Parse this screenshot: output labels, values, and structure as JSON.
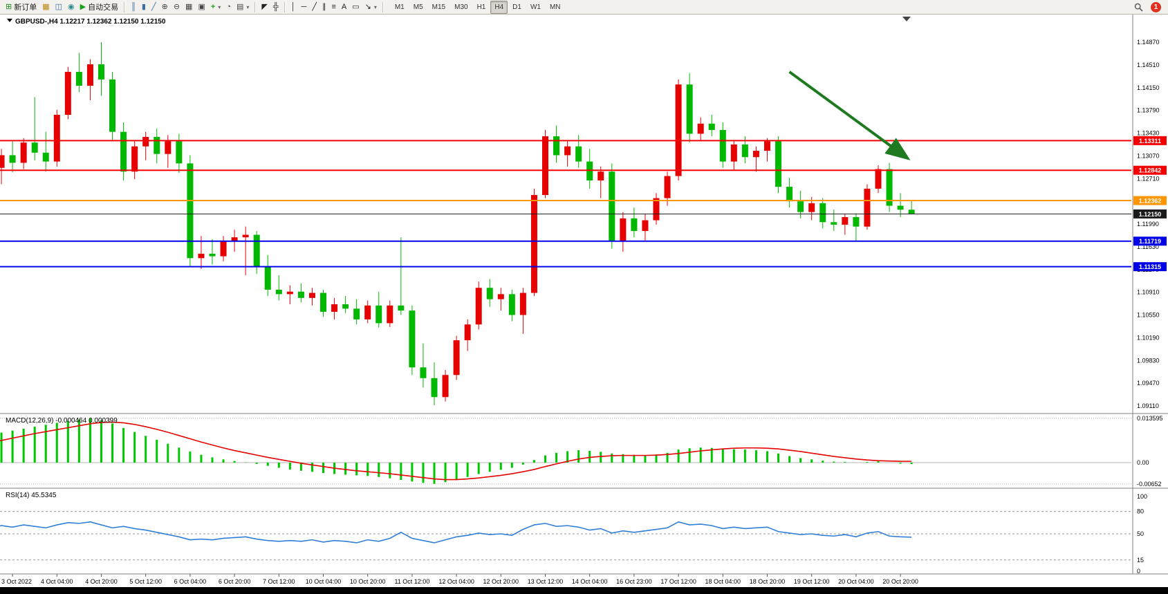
{
  "toolbar": {
    "left_groups": [
      {
        "buttons": [
          {
            "id": "new-order",
            "glyph": "⊞",
            "color": "#1a8a1a",
            "label": "新订单"
          },
          {
            "id": "market-watch",
            "glyph": "▦",
            "color": "#b8860b"
          },
          {
            "id": "data-window",
            "glyph": "◫",
            "color": "#3a6ea5"
          },
          {
            "id": "navigator",
            "glyph": "◉",
            "color": "#2e8b8b"
          },
          {
            "id": "autotrading",
            "glyph": "▶",
            "color": "#18a018",
            "label": "自动交易"
          }
        ]
      },
      {
        "buttons": [
          {
            "id": "bar-chart",
            "glyph": "║",
            "color": "#3a6ea5"
          },
          {
            "id": "candlestick-chart",
            "glyph": "▮",
            "color": "#3a6ea5"
          },
          {
            "id": "line-chart",
            "glyph": "╱",
            "color": "#3a6ea5"
          },
          {
            "id": "zoom-in",
            "glyph": "⊕",
            "color": "#444444"
          },
          {
            "id": "zoom-out",
            "glyph": "⊖",
            "color": "#444444"
          },
          {
            "id": "tile-windows",
            "glyph": "▦",
            "color": "#444444"
          },
          {
            "id": "arrange-windows",
            "glyph": "▣",
            "color": "#444444"
          },
          {
            "id": "new-chart",
            "glyph": "+",
            "color": "#18a018",
            "caret": true
          },
          {
            "id": "chart-period",
            "glyph": "◔",
            "color": "#444444"
          },
          {
            "id": "chart-template",
            "glyph": "▤",
            "color": "#444444",
            "caret": true
          }
        ]
      },
      {
        "buttons": [
          {
            "id": "cursor",
            "glyph": "◤",
            "color": "#222222"
          },
          {
            "id": "crosshair",
            "glyph": "╬",
            "color": "#222222"
          }
        ]
      },
      {
        "buttons": [
          {
            "id": "vertical-line",
            "glyph": "│",
            "color": "#222222"
          },
          {
            "id": "horizontal-line",
            "glyph": "─",
            "color": "#222222"
          },
          {
            "id": "trendline",
            "glyph": "╱",
            "color": "#222222"
          },
          {
            "id": "equidistant-channel",
            "glyph": "∥",
            "color": "#222222"
          },
          {
            "id": "fibonacci",
            "glyph": "≡",
            "color": "#222222"
          },
          {
            "id": "text",
            "glyph": "A",
            "color": "#222222"
          },
          {
            "id": "text-label",
            "glyph": "▭",
            "color": "#222222"
          },
          {
            "id": "arrows",
            "glyph": "↘",
            "color": "#222222",
            "caret": true
          }
        ]
      }
    ],
    "timeframes": {
      "items": [
        "M1",
        "M5",
        "M15",
        "M30",
        "H1",
        "H4",
        "D1",
        "W1",
        "MN"
      ],
      "active": "H4"
    },
    "notification_count": "1"
  },
  "chart_data": [
    {
      "type": "candlestick",
      "title": "GBPUSD-,H4",
      "ohlc_display": "1.12217 1.12362 1.12150 1.12150",
      "timeframe": "H4",
      "bull_color": "#e60000",
      "bear_color": "#00b800",
      "y_axis": [
        1.1487,
        1.1451,
        1.1415,
        1.1379,
        1.1343,
        1.1307,
        1.1271,
        1.1235,
        1.1199,
        1.1163,
        1.1127,
        1.1091,
        1.1055,
        1.1019,
        1.0983,
        1.0947,
        1.0911
      ],
      "hlines": [
        {
          "name": "resistance-line-upper",
          "price": 1.13311,
          "label": "1.13311",
          "color": "#f50000",
          "width": 2
        },
        {
          "name": "resistance-line-lower",
          "price": 1.12842,
          "label": "1.12842",
          "color": "#f50000",
          "width": 2
        },
        {
          "name": "alert-line",
          "price": 1.12362,
          "label": "1.12362",
          "color": "#ff9500",
          "width": 2
        },
        {
          "name": "current-price-line",
          "price": 1.1215,
          "label": "1.12150",
          "color": "#1a1a1a",
          "width": 1
        },
        {
          "name": "support-line-upper",
          "price": 1.11719,
          "label": "1.11719",
          "color": "#0000e8",
          "width": 2
        },
        {
          "name": "support-line-lower",
          "price": 1.11315,
          "label": "1.11315",
          "color": "#0000e8",
          "width": 2
        }
      ],
      "annotations": [
        {
          "type": "arrow",
          "name": "downtrend-arrow",
          "x1_index": 72,
          "y1_price": 1.144,
          "x2_index": 82.5,
          "y2_price": 1.1305,
          "color": "#1e7a1e"
        }
      ],
      "time_labels": [
        "3 Oct 2022",
        "4 Oct 04:00",
        "4 Oct 20:00",
        "5 Oct 12:00",
        "6 Oct 04:00",
        "6 Oct 20:00",
        "7 Oct 12:00",
        "10 Oct 04:00",
        "10 Oct 20:00",
        "11 Oct 12:00",
        "12 Oct 04:00",
        "12 Oct 20:00",
        "13 Oct 12:00",
        "14 Oct 04:00",
        "16 Oct 23:00",
        "17 Oct 12:00",
        "18 Oct 04:00",
        "18 Oct 20:00",
        "19 Oct 12:00",
        "20 Oct 04:00",
        "20 Oct 20:00"
      ],
      "first_label_index": 2,
      "label_every": 4,
      "candles": [
        [
          1.124,
          1.1298,
          1.1228,
          1.1288
        ],
        [
          1.1288,
          1.1318,
          1.1262,
          1.1308
        ],
        [
          1.1308,
          1.133,
          1.1281,
          1.1296
        ],
        [
          1.1296,
          1.1335,
          1.1286,
          1.1328
        ],
        [
          1.1328,
          1.14,
          1.13,
          1.1312
        ],
        [
          1.1312,
          1.1345,
          1.1282,
          1.1298
        ],
        [
          1.1298,
          1.138,
          1.129,
          1.1372
        ],
        [
          1.1372,
          1.1448,
          1.1365,
          1.144
        ],
        [
          1.144,
          1.147,
          1.1408,
          1.1418
        ],
        [
          1.1418,
          1.146,
          1.1395,
          1.1452
        ],
        [
          1.1452,
          1.1487,
          1.1402,
          1.1428
        ],
        [
          1.1428,
          1.144,
          1.133,
          1.1345
        ],
        [
          1.1345,
          1.136,
          1.1268,
          1.1282
        ],
        [
          1.1282,
          1.133,
          1.127,
          1.1322
        ],
        [
          1.1322,
          1.1345,
          1.13,
          1.1337
        ],
        [
          1.1337,
          1.135,
          1.1295,
          1.131
        ],
        [
          1.131,
          1.134,
          1.1288,
          1.133
        ],
        [
          1.133,
          1.1342,
          1.128,
          1.1295
        ],
        [
          1.1295,
          1.1308,
          1.1132,
          1.1145
        ],
        [
          1.1145,
          1.118,
          1.1128,
          1.1152
        ],
        [
          1.1152,
          1.1175,
          1.1135,
          1.1148
        ],
        [
          1.1148,
          1.118,
          1.114,
          1.1172
        ],
        [
          1.1172,
          1.119,
          1.1155,
          1.1178
        ],
        [
          1.1178,
          1.1195,
          1.1118,
          1.1182
        ],
        [
          1.1182,
          1.1188,
          1.112,
          1.1132
        ],
        [
          1.1132,
          1.115,
          1.1085,
          1.1095
        ],
        [
          1.1095,
          1.1118,
          1.1078,
          1.1088
        ],
        [
          1.1088,
          1.1102,
          1.1072,
          1.1092
        ],
        [
          1.1092,
          1.1105,
          1.1075,
          1.1082
        ],
        [
          1.1082,
          1.1098,
          1.107,
          1.109
        ],
        [
          1.109,
          1.1095,
          1.1052,
          1.106
        ],
        [
          1.106,
          1.1082,
          1.1048,
          1.1072
        ],
        [
          1.1072,
          1.1085,
          1.1058,
          1.1065
        ],
        [
          1.1065,
          1.108,
          1.104,
          1.1048
        ],
        [
          1.1048,
          1.1078,
          1.1042,
          1.107
        ],
        [
          1.107,
          1.1092,
          1.1035,
          1.1042
        ],
        [
          1.1042,
          1.1078,
          1.1036,
          1.107
        ],
        [
          1.107,
          1.1178,
          1.1055,
          1.1062
        ],
        [
          1.1062,
          1.107,
          1.096,
          1.0972
        ],
        [
          1.0972,
          1.101,
          1.094,
          1.0955
        ],
        [
          1.0955,
          1.098,
          1.0912,
          1.0925
        ],
        [
          1.0925,
          1.0968,
          1.0918,
          1.096
        ],
        [
          1.096,
          1.1022,
          1.0952,
          1.1015
        ],
        [
          1.1015,
          1.1048,
          1.0998,
          1.104
        ],
        [
          1.104,
          1.1108,
          1.1032,
          1.1098
        ],
        [
          1.1098,
          1.1112,
          1.1068,
          1.108
        ],
        [
          1.108,
          1.1098,
          1.1062,
          1.1088
        ],
        [
          1.1088,
          1.1095,
          1.1045,
          1.1055
        ],
        [
          1.1055,
          1.1098,
          1.1025,
          1.109
        ],
        [
          1.109,
          1.1255,
          1.1085,
          1.1245
        ],
        [
          1.1245,
          1.1348,
          1.124,
          1.1338
        ],
        [
          1.1338,
          1.1355,
          1.1296,
          1.1308
        ],
        [
          1.1308,
          1.1332,
          1.129,
          1.1322
        ],
        [
          1.1322,
          1.134,
          1.1288,
          1.1298
        ],
        [
          1.1298,
          1.1318,
          1.1255,
          1.1268
        ],
        [
          1.1268,
          1.129,
          1.124,
          1.1282
        ],
        [
          1.1282,
          1.1295,
          1.116,
          1.1172
        ],
        [
          1.1172,
          1.1218,
          1.1155,
          1.1208
        ],
        [
          1.1208,
          1.1225,
          1.1178,
          1.1188
        ],
        [
          1.1188,
          1.1215,
          1.1172,
          1.1205
        ],
        [
          1.1205,
          1.1248,
          1.1198,
          1.124
        ],
        [
          1.124,
          1.1282,
          1.1228,
          1.1275
        ],
        [
          1.1275,
          1.1428,
          1.1268,
          1.142
        ],
        [
          1.142,
          1.1438,
          1.1328,
          1.1342
        ],
        [
          1.1342,
          1.1368,
          1.133,
          1.1358
        ],
        [
          1.1358,
          1.1372,
          1.1338,
          1.1348
        ],
        [
          1.1348,
          1.136,
          1.1288,
          1.1298
        ],
        [
          1.1298,
          1.1332,
          1.1285,
          1.1325
        ],
        [
          1.1325,
          1.1338,
          1.1295,
          1.1305
        ],
        [
          1.1305,
          1.1322,
          1.1282,
          1.1315
        ],
        [
          1.1315,
          1.1335,
          1.1298,
          1.133
        ],
        [
          1.133,
          1.1338,
          1.1248,
          1.1258
        ],
        [
          1.1258,
          1.1272,
          1.1225,
          1.1235
        ],
        [
          1.1235,
          1.1252,
          1.1208,
          1.1218
        ],
        [
          1.1218,
          1.1242,
          1.1205,
          1.1232
        ],
        [
          1.1232,
          1.124,
          1.1192,
          1.1202
        ],
        [
          1.1202,
          1.1222,
          1.1188,
          1.1198
        ],
        [
          1.1198,
          1.1215,
          1.1182,
          1.121
        ],
        [
          1.121,
          1.1216,
          1.1172,
          1.1195
        ],
        [
          1.1195,
          1.1262,
          1.119,
          1.1255
        ],
        [
          1.1255,
          1.1292,
          1.1248,
          1.1286
        ],
        [
          1.1286,
          1.1296,
          1.1218,
          1.1228
        ],
        [
          1.1228,
          1.1248,
          1.121,
          1.12217
        ],
        [
          1.12217,
          1.12362,
          1.1215,
          1.1215
        ]
      ]
    },
    {
      "type": "bar",
      "name": "MACD(12,26,9)",
      "value_macd": "-0.000464",
      "value_signal": "0.000399",
      "histogram_color": "#00c800",
      "signal_color": "#e60000",
      "axis": [
        {
          "value": 0.013595,
          "label": "0.013595"
        },
        {
          "value": 0,
          "label": "0.00"
        },
        {
          "value": -0.00652,
          "label": "-0.00652"
        }
      ],
      "histogram": [
        0.0085,
        0.0092,
        0.0098,
        0.0104,
        0.011,
        0.0116,
        0.0122,
        0.0128,
        0.0132,
        0.0136,
        0.013,
        0.012,
        0.0106,
        0.0094,
        0.0082,
        0.007,
        0.0058,
        0.0046,
        0.0034,
        0.0024,
        0.0016,
        0.001,
        0.0005,
        0.0001,
        -0.0004,
        -0.001,
        -0.0016,
        -0.0021,
        -0.0025,
        -0.0028,
        -0.0032,
        -0.0035,
        -0.0037,
        -0.0039,
        -0.0041,
        -0.0044,
        -0.0048,
        -0.0053,
        -0.0058,
        -0.0062,
        -0.0065,
        -0.006,
        -0.0052,
        -0.0044,
        -0.0035,
        -0.0028,
        -0.0022,
        -0.0016,
        -0.0006,
        0.0008,
        0.0022,
        0.003,
        0.0035,
        0.0038,
        0.0036,
        0.0033,
        0.0028,
        0.0026,
        0.0024,
        0.0023,
        0.0025,
        0.003,
        0.004,
        0.0044,
        0.0046,
        0.0045,
        0.0043,
        0.0041,
        0.004,
        0.0038,
        0.0035,
        0.0028,
        0.002,
        0.0014,
        0.001,
        0.0006,
        0.0003,
        0.0002,
        0.0,
        0.0002,
        0.0004,
        0.0,
        -0.0003,
        -0.000464
      ],
      "signal": [
        0.006,
        0.0068,
        0.0075,
        0.0082,
        0.0089,
        0.0095,
        0.0101,
        0.0107,
        0.0113,
        0.0119,
        0.0123,
        0.0124,
        0.0122,
        0.0117,
        0.011,
        0.0102,
        0.0093,
        0.0083,
        0.0073,
        0.0063,
        0.0054,
        0.0045,
        0.0037,
        0.003,
        0.0023,
        0.0016,
        0.001,
        0.0004,
        -0.0002,
        -0.0007,
        -0.0012,
        -0.0017,
        -0.0021,
        -0.0025,
        -0.0028,
        -0.0031,
        -0.0034,
        -0.0038,
        -0.0042,
        -0.0046,
        -0.005,
        -0.0052,
        -0.0052,
        -0.005,
        -0.0047,
        -0.0043,
        -0.0039,
        -0.0034,
        -0.0028,
        -0.0021,
        -0.0012,
        -0.0004,
        0.0004,
        0.0011,
        0.0016,
        0.0019,
        0.0021,
        0.0022,
        0.0022,
        0.0022,
        0.0023,
        0.0025,
        0.0028,
        0.0032,
        0.0036,
        0.0039,
        0.0042,
        0.0044,
        0.0045,
        0.0045,
        0.0044,
        0.0042,
        0.0038,
        0.0034,
        0.0029,
        0.0024,
        0.0019,
        0.0015,
        0.0011,
        0.0008,
        0.0006,
        0.0005,
        0.0004,
        0.000399
      ]
    },
    {
      "type": "line",
      "name": "RSI(14)",
      "value": "45.5345",
      "line_color": "#2f7ed8",
      "levels": [
        {
          "value": 100,
          "label": "100",
          "dashed": false
        },
        {
          "value": 80,
          "label": "80",
          "dashed": true
        },
        {
          "value": 50,
          "label": "50",
          "dashed": true
        },
        {
          "value": 15,
          "label": "15",
          "dashed": true
        },
        {
          "value": 0,
          "label": "0",
          "dashed": false
        }
      ],
      "values": [
        58,
        61,
        59,
        62,
        60,
        58,
        62,
        65,
        64,
        66,
        62,
        58,
        60,
        57,
        55,
        52,
        49,
        46,
        42,
        43,
        42,
        44,
        45,
        46,
        43,
        41,
        40,
        41,
        40,
        42,
        39,
        41,
        40,
        38,
        42,
        40,
        44,
        52,
        44,
        41,
        38,
        42,
        46,
        48,
        51,
        49,
        50,
        48,
        56,
        62,
        64,
        60,
        61,
        59,
        55,
        57,
        51,
        54,
        52,
        54,
        56,
        58,
        66,
        62,
        63,
        61,
        57,
        59,
        57,
        58,
        59,
        53,
        51,
        49,
        50,
        48,
        47,
        49,
        46,
        51,
        53,
        47,
        46,
        45.5
      ]
    }
  ]
}
